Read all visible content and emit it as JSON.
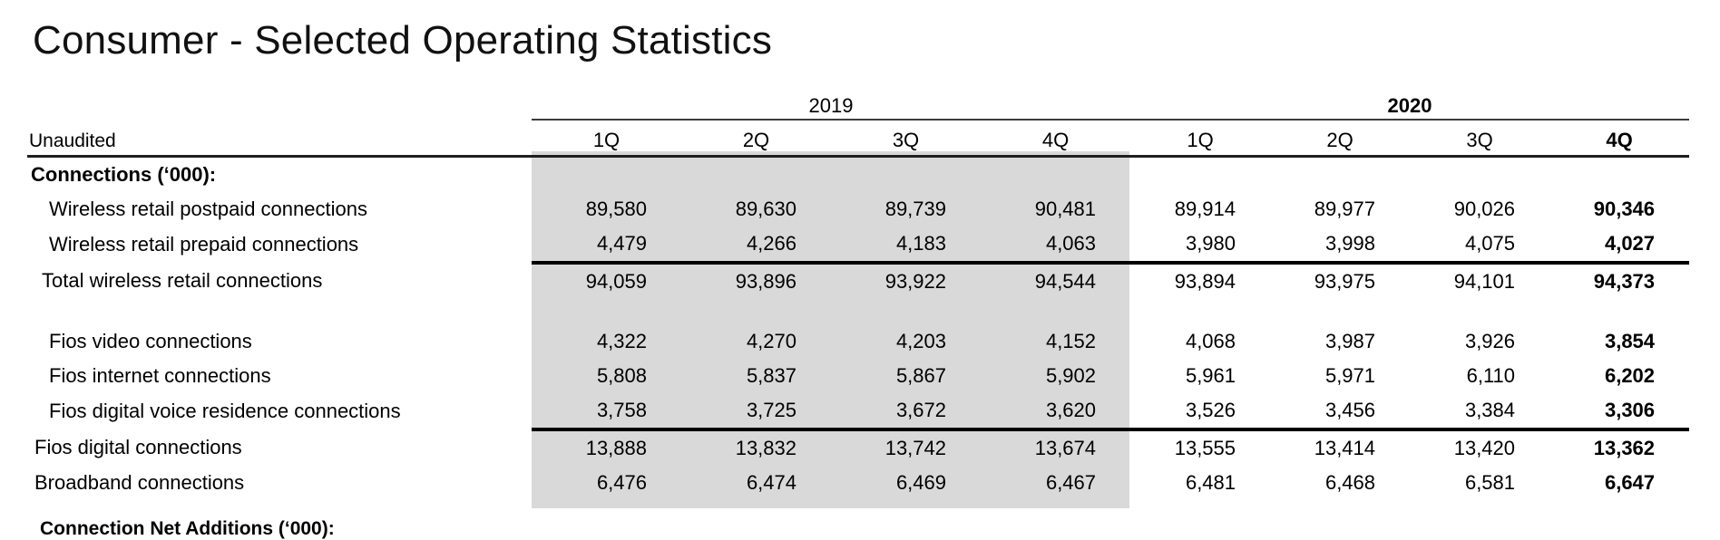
{
  "title": "Consumer - Selected Operating Statistics",
  "header": {
    "unaudited": "Unaudited",
    "year_groups": [
      {
        "label": "2019",
        "bold": false
      },
      {
        "label": "2020",
        "bold": true
      }
    ],
    "quarters": [
      {
        "label": "1Q",
        "bold": false
      },
      {
        "label": "2Q",
        "bold": false
      },
      {
        "label": "3Q",
        "bold": false
      },
      {
        "label": "4Q",
        "bold": false
      },
      {
        "label": "1Q",
        "bold": false
      },
      {
        "label": "2Q",
        "bold": false
      },
      {
        "label": "3Q",
        "bold": false
      },
      {
        "label": "4Q",
        "bold": true
      }
    ]
  },
  "rows": [
    {
      "type": "section",
      "indent": 0,
      "label": "Connections (‘000):",
      "values": []
    },
    {
      "type": "data",
      "indent": 3,
      "label": "Wireless retail postpaid connections",
      "values": [
        "89,580",
        "89,630",
        "89,739",
        "90,481",
        "89,914",
        "89,977",
        "90,026",
        "90,346"
      ]
    },
    {
      "type": "data",
      "indent": 3,
      "label": "Wireless retail prepaid connections",
      "values": [
        "4,479",
        "4,266",
        "4,183",
        "4,063",
        "3,980",
        "3,998",
        "4,075",
        "4,027"
      ]
    },
    {
      "type": "data",
      "indent": 2,
      "sum_border": true,
      "label": "Total wireless retail connections",
      "values": [
        "94,059",
        "93,896",
        "93,922",
        "94,544",
        "93,894",
        "93,975",
        "94,101",
        "94,373"
      ]
    },
    {
      "type": "spacer"
    },
    {
      "type": "data",
      "indent": 3,
      "label": "Fios video connections",
      "values": [
        "4,322",
        "4,270",
        "4,203",
        "4,152",
        "4,068",
        "3,987",
        "3,926",
        "3,854"
      ]
    },
    {
      "type": "data",
      "indent": 3,
      "label": "Fios internet connections",
      "values": [
        "5,808",
        "5,837",
        "5,867",
        "5,902",
        "5,961",
        "5,971",
        "6,110",
        "6,202"
      ]
    },
    {
      "type": "data",
      "indent": 3,
      "label": "Fios digital voice residence connections",
      "values": [
        "3,758",
        "3,725",
        "3,672",
        "3,620",
        "3,526",
        "3,456",
        "3,384",
        "3,306"
      ]
    },
    {
      "type": "data",
      "indent": 1,
      "sum_border": true,
      "label": "Fios digital connections",
      "values": [
        "13,888",
        "13,832",
        "13,742",
        "13,674",
        "13,555",
        "13,414",
        "13,420",
        "13,362"
      ]
    },
    {
      "type": "data",
      "indent": 1,
      "label": "Broadband connections",
      "values": [
        "6,476",
        "6,474",
        "6,469",
        "6,467",
        "6,481",
        "6,468",
        "6,581",
        "6,647"
      ]
    }
  ],
  "partial_next_heading": "Connection Net Additions (‘000):",
  "colors": {
    "row_highlight": "#d9d9d9",
    "header_rule": "#1f1f1f",
    "sum_rule": "#000000"
  }
}
